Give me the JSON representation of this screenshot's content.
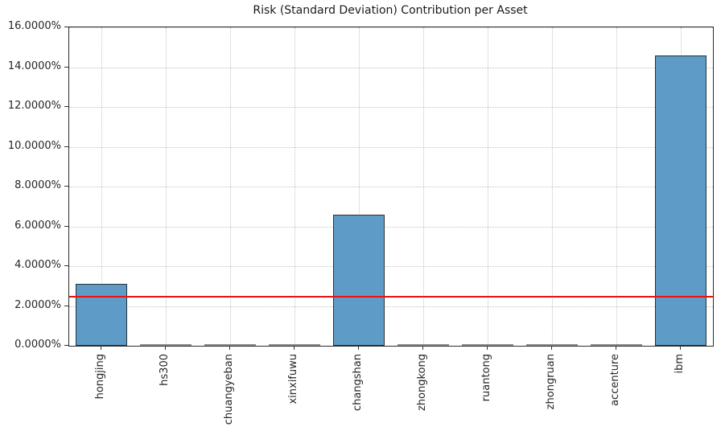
{
  "chart_data": {
    "type": "bar",
    "title": "Risk (Standard Deviation) Contribution per Asset",
    "categories": [
      "hongjing",
      "hs300",
      "chuangyeban",
      "xinxifuwu",
      "changshan",
      "zhongkong",
      "ruantong",
      "zhongruan",
      "accenture",
      "ibm"
    ],
    "values": [
      3.1,
      0,
      0,
      0,
      6.6,
      0,
      0,
      0,
      0,
      14.6
    ],
    "unit": "%",
    "xlabel": "",
    "ylabel": "",
    "ylim": [
      0,
      16
    ],
    "ytick_step": 2,
    "ytick_labels": [
      "0.0000%",
      "2.0000%",
      "4.0000%",
      "6.0000%",
      "8.0000%",
      "10.0000%",
      "12.0000%",
      "14.0000%",
      "16.0000%"
    ],
    "reference_line": {
      "value": 2.45,
      "color": "#ee1111"
    },
    "grid": "dotted-both-axes",
    "legend": "none",
    "bar_color": "#5f9bc7",
    "bar_edge_color": "#263238",
    "zero_bar_color": "#8c8c8c"
  }
}
